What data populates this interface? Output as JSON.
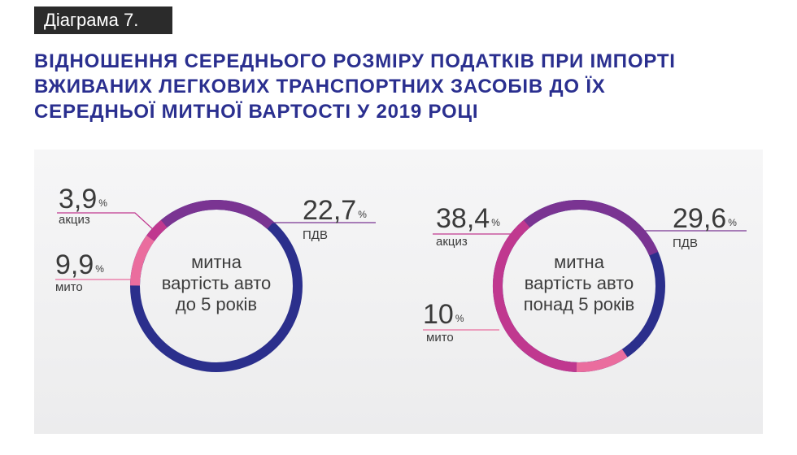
{
  "header": {
    "tag": "Діаграма 7."
  },
  "title": {
    "line1": "ВІДНОШЕННЯ СЕРЕДНЬОГО РОЗМІРУ ПОДАТКІВ ПРИ ІМПОРТІ",
    "line2": "ВЖИВАНИХ ЛЕГКОВИХ ТРАНСПОРТНИХ ЗАСОБІВ ДО ЇХ",
    "line3": "СЕРЕДНЬОЇ МИТНОЇ ВАРТОСТІ У 2019 РОЦІ"
  },
  "colors": {
    "base": "#2b2f8c",
    "pdv": "#7a3492",
    "akcyz": "#c0388f",
    "myto": "#ea6d9e",
    "title": "#2a2f8f",
    "tag_bg": "#2b2b2b"
  },
  "chart_data": [
    {
      "type": "pie",
      "center_lines": [
        "митна",
        "вартість авто",
        "до 5 років"
      ],
      "unit": "%",
      "slices": [
        {
          "label": "ПДВ",
          "value": 22.7,
          "display": "22,7",
          "color": "#7a3492"
        },
        {
          "label": "акциз",
          "value": 3.9,
          "display": "3,9",
          "color": "#c0388f"
        },
        {
          "label": "мито",
          "value": 9.9,
          "display": "9,9",
          "color": "#ea6d9e"
        }
      ]
    },
    {
      "type": "pie",
      "center_lines": [
        "митна",
        "вартість авто",
        "понад 5 років"
      ],
      "unit": "%",
      "slices": [
        {
          "label": "ПДВ",
          "value": 29.6,
          "display": "29,6",
          "color": "#7a3492"
        },
        {
          "label": "акциз",
          "value": 38.4,
          "display": "38,4",
          "color": "#c0388f"
        },
        {
          "label": "мито",
          "value": 10,
          "display": "10",
          "color": "#ea6d9e"
        }
      ]
    }
  ]
}
